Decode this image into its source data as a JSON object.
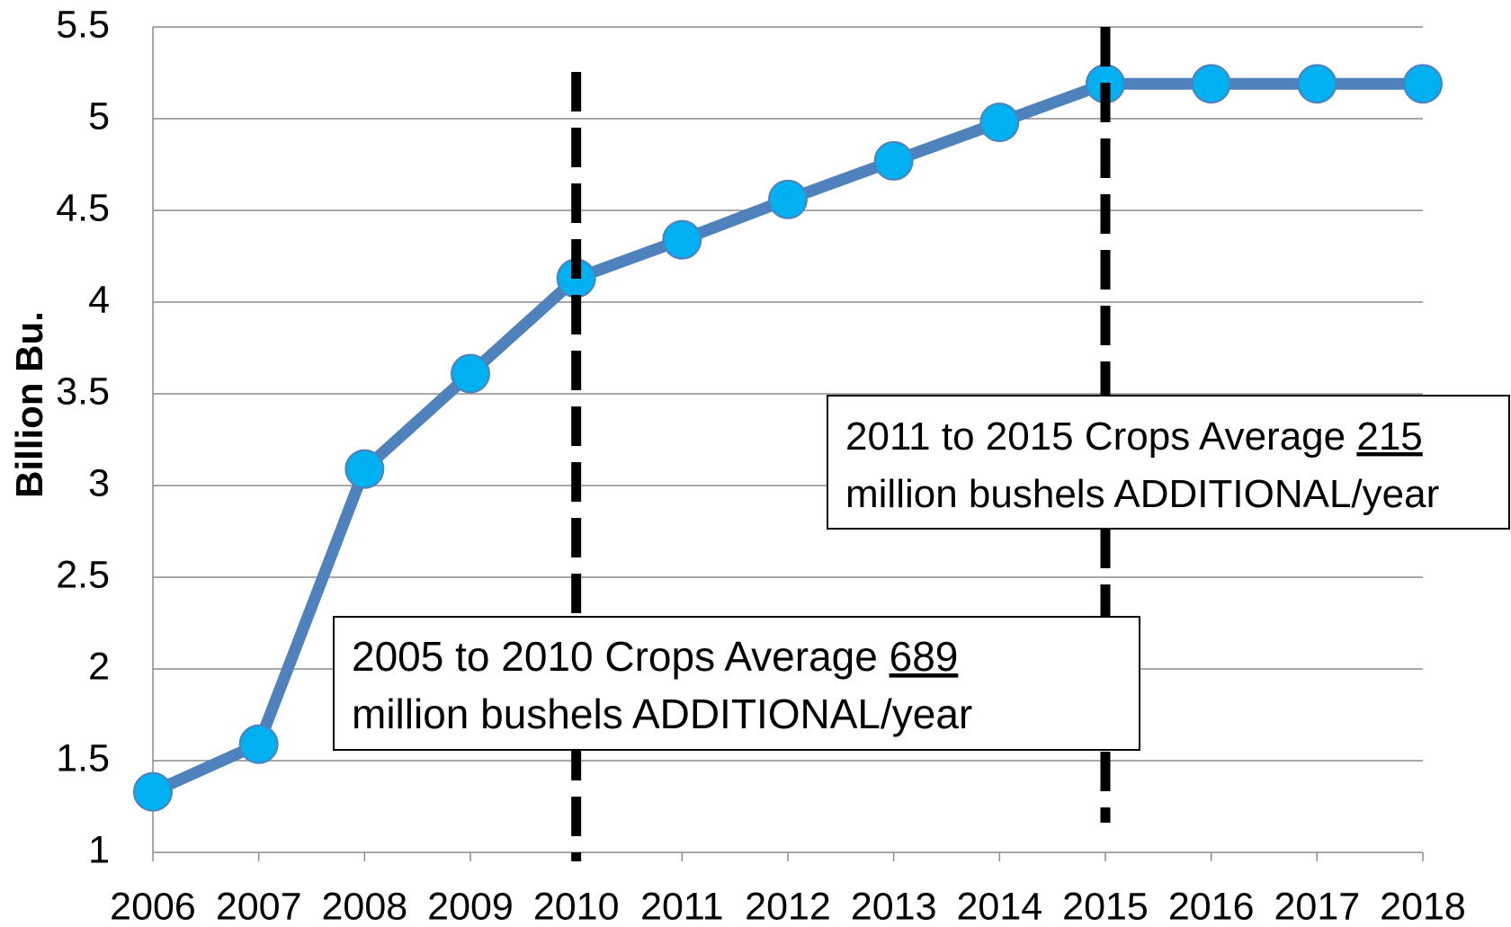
{
  "chart_data": {
    "type": "line",
    "y_label": "Billion Bu.",
    "x": [
      2006,
      2007,
      2008,
      2009,
      2010,
      2011,
      2012,
      2013,
      2014,
      2015,
      2016,
      2017,
      2018
    ],
    "series": [
      {
        "color": "#4f81bd",
        "marker_color": "#00b0f0",
        "values": [
          1.33,
          1.59,
          3.09,
          3.61,
          4.13,
          4.34,
          4.56,
          4.77,
          4.98,
          5.19,
          5.19,
          5.19,
          5.19
        ]
      }
    ],
    "xlim": [
      2006,
      2018
    ],
    "xticks": [
      2006,
      2007,
      2008,
      2009,
      2010,
      2011,
      2012,
      2013,
      2014,
      2015,
      2016,
      2017,
      2018
    ],
    "ylim": [
      1,
      5.5
    ],
    "yticks": [
      1,
      1.5,
      2,
      2.5,
      3,
      3.5,
      4,
      4.5,
      5,
      5.5
    ],
    "grid": true,
    "vlines": [
      2010,
      2015
    ],
    "annotations": [
      {
        "line1": "2005 to 2010 Crops Average",
        "underlined": "689",
        "line2": "million bushels ADDITIONAL/year"
      },
      {
        "line1": "2011 to 2015 Crops Average",
        "underlined": "215",
        "line2": "million bushels ADDITIONAL/year"
      }
    ]
  }
}
